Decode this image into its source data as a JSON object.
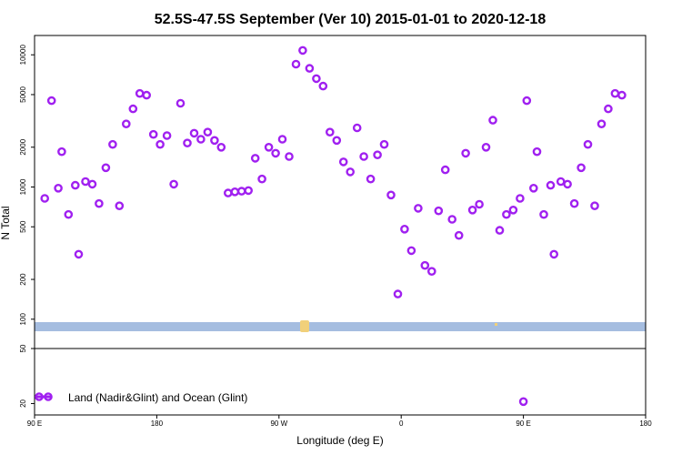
{
  "chart_data": {
    "type": "scatter",
    "title": "52.5S-47.5S September (Ver 10)   2015-01-01 to 2020-12-18",
    "xlabel": "Longitude (deg E)",
    "ylabel": "N Total",
    "x_ticks": [
      {
        "value": 90,
        "label": "90 E"
      },
      {
        "value": 180,
        "label": "180"
      },
      {
        "value": 270,
        "label": "90 W"
      },
      {
        "value": 360,
        "label": "0"
      },
      {
        "value": 450,
        "label": "90 E"
      },
      {
        "value": 540,
        "label": "180"
      }
    ],
    "xlim": [
      90,
      540
    ],
    "y_scale": "log",
    "upper_ylim": [
      60,
      14000
    ],
    "upper_yticks": [
      "50",
      "100",
      "200",
      "500",
      "1000",
      "2000",
      "5000",
      "10000"
    ],
    "lower_yticks": [
      "20",
      "50"
    ],
    "grid": false,
    "legend_position": "bottom-left",
    "colors": {
      "series": "#a020f0",
      "ocean": "#a5bde0",
      "land": "#f1d07a"
    },
    "series": [
      {
        "name": "Land (Nadir&Glint) and Ocean (Glint)",
        "points": [
          [
            97.5,
            820
          ],
          [
            102.5,
            4500
          ],
          [
            107.5,
            980
          ],
          [
            110,
            1850
          ],
          [
            115,
            620
          ],
          [
            120,
            1030
          ],
          [
            122.5,
            310
          ],
          [
            127.5,
            1100
          ],
          [
            132.5,
            1050
          ],
          [
            137.5,
            750
          ],
          [
            142.5,
            1400
          ],
          [
            147.5,
            2100
          ],
          [
            152.5,
            720
          ],
          [
            157.5,
            3000
          ],
          [
            162.5,
            3900
          ],
          [
            167.5,
            5100
          ],
          [
            172.5,
            4950
          ],
          [
            177.5,
            2500
          ],
          [
            182.5,
            2100
          ],
          [
            187.5,
            2450
          ],
          [
            192.5,
            1050
          ],
          [
            197.5,
            4300
          ],
          [
            202.5,
            2150
          ],
          [
            207.5,
            2550
          ],
          [
            212.5,
            2300
          ],
          [
            217.5,
            2600
          ],
          [
            222.5,
            2250
          ],
          [
            227.5,
            2000
          ],
          [
            232.5,
            900
          ],
          [
            237.5,
            920
          ],
          [
            242.5,
            930
          ],
          [
            247.5,
            940
          ],
          [
            252.5,
            1650
          ],
          [
            257.5,
            1150
          ],
          [
            262.5,
            2000
          ],
          [
            267.5,
            1800
          ],
          [
            272.5,
            2300
          ],
          [
            277.5,
            1700
          ],
          [
            282.5,
            8500
          ],
          [
            287.5,
            10800
          ],
          [
            292.5,
            7900
          ],
          [
            297.5,
            6600
          ],
          [
            302.5,
            5800
          ],
          [
            307.5,
            2600
          ],
          [
            312.5,
            2250
          ],
          [
            317.5,
            1550
          ],
          [
            322.5,
            1300
          ],
          [
            327.5,
            2800
          ],
          [
            332.5,
            1700
          ],
          [
            337.5,
            1150
          ],
          [
            342.5,
            1750
          ],
          [
            347.5,
            2100
          ],
          [
            352.5,
            870
          ],
          [
            357.5,
            155
          ],
          [
            362.5,
            480
          ],
          [
            367.5,
            330
          ],
          [
            372.5,
            690
          ],
          [
            377.5,
            255
          ],
          [
            382.5,
            230
          ],
          [
            387.5,
            660
          ],
          [
            392.5,
            1350
          ],
          [
            397.5,
            570
          ],
          [
            402.5,
            430
          ],
          [
            407.5,
            1800
          ],
          [
            412.5,
            670
          ],
          [
            417.5,
            740
          ],
          [
            422.5,
            2000
          ],
          [
            427.5,
            3200
          ],
          [
            432.5,
            470
          ],
          [
            437.5,
            620
          ],
          [
            442.5,
            670
          ],
          [
            447.5,
            820
          ],
          [
            452.5,
            4500
          ],
          [
            457.5,
            980
          ],
          [
            460,
            1850
          ],
          [
            465,
            620
          ],
          [
            470,
            1030
          ],
          [
            472.5,
            310
          ],
          [
            477.5,
            1100
          ],
          [
            482.5,
            1050
          ],
          [
            487.5,
            750
          ],
          [
            492.5,
            1400
          ],
          [
            497.5,
            2100
          ],
          [
            502.5,
            720
          ],
          [
            507.5,
            3000
          ],
          [
            512.5,
            3900
          ],
          [
            517.5,
            5100
          ],
          [
            522.5,
            4950
          ]
        ],
        "lower_points": [
          [
            450,
            21
          ]
        ]
      }
    ]
  }
}
